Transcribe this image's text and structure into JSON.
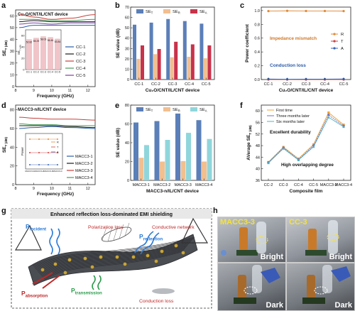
{
  "panels": {
    "a": {
      "letter": "a",
      "title": "Cu₂O/CNT/IL/CNT device",
      "xlabel": "Frequency (GHz)",
      "ylabel": "SE_T (dB)",
      "xticks": [
        "8",
        "9",
        "10",
        "11",
        "12"
      ],
      "yticks": [
        "0",
        "10",
        "20",
        "30",
        "40",
        "50",
        "60"
      ],
      "legend": [
        "CC-1",
        "CC-2",
        "CC-3",
        "CC-4",
        "CC-5"
      ],
      "inset": {
        "ylabel": "SE_T (dB)",
        "categories": [
          "CC-1",
          "CC-2",
          "CC-3",
          "CC-4",
          "CC-5"
        ],
        "values": [
          52.82,
          55.29,
          58.03,
          56.46,
          53.84
        ],
        "value_labels": [
          "52.82",
          "55.29",
          "58.03",
          "56.46",
          "53.84"
        ],
        "yticks": [
          "0",
          "20",
          "40",
          "60"
        ]
      }
    },
    "b": {
      "letter": "b",
      "xlabel": "Cu₂O/CNT/IL/CNT device",
      "ylabel": "SE value (dB)",
      "categories": [
        "CC-1",
        "CC-2",
        "CC-3",
        "CC-4",
        "CC-5"
      ],
      "yticks": [
        "0",
        "10",
        "20",
        "30",
        "40",
        "50",
        "60",
        "70"
      ],
      "legend": [
        "SE_T",
        "SE_R",
        "SE_A"
      ]
    },
    "c": {
      "letter": "c",
      "xlabel": "Cu₂O/CNT/IL/CNT device",
      "ylabel": "Power coefficient",
      "categories": [
        "CC-1",
        "CC-2",
        "CC-3",
        "CC-4",
        "CC-5"
      ],
      "yticks": [
        "0.0",
        "0.2",
        "0.4",
        "0.6",
        "0.8",
        "1.0"
      ],
      "legend": [
        "R",
        "T",
        "A"
      ],
      "annot1": "Impedance mismatch",
      "annot2": "Conduction loss"
    },
    "d": {
      "letter": "d",
      "title": "MACC3-n/IL/CNT device",
      "xlabel": "Frequency (GHz)",
      "ylabel": "SE_T (dB)",
      "xticks": [
        "8",
        "9",
        "10",
        "11",
        "12"
      ],
      "yticks": [
        "0",
        "20",
        "40",
        "60",
        "80"
      ],
      "legend": [
        "MACC3-1",
        "MACC3-2",
        "MACC3-3",
        "MACC3-4"
      ],
      "inset": {
        "ylabel": "Power",
        "legend": [
          "R",
          "T",
          "A"
        ],
        "categories": [
          "MACC3-1",
          "MACC3-2",
          "MACC3-3",
          "MACC3-4"
        ]
      }
    },
    "e": {
      "letter": "e",
      "xlabel": "MACC3-n/IL/CNT device",
      "ylabel": "SE value (dB)",
      "categories": [
        "MACC3-1",
        "MACC3-2",
        "MACC3-3",
        "MACC3-4"
      ],
      "yticks": [
        "0",
        "20",
        "40",
        "60",
        "80"
      ],
      "legend": [
        "SE_T",
        "SE_R",
        "SE_A"
      ]
    },
    "f": {
      "letter": "f",
      "xlabel": "Composite film",
      "ylabel": "AVerage SE_T (dB)",
      "categories": [
        "CC-2",
        "CC-3",
        "CC-4",
        "CC-5",
        "MACC3-2",
        "MACC3-4"
      ],
      "yticks": [
        "36",
        "40",
        "44",
        "48",
        "52",
        "56",
        "60"
      ],
      "legend": [
        "First time",
        "Three months later",
        "Six months later"
      ],
      "annot1": "Excellent durability",
      "annot2": "High overlapping degree"
    },
    "g": {
      "letter": "g",
      "title": "Enhanced reflection loss-dominated EMI shielding",
      "labels": {
        "incident": "P_incident",
        "reflection": "P_reflection",
        "absorption": "P_absorption",
        "transmission": "P_transmission",
        "polarization": "Polarization loss",
        "network": "Conductive network",
        "conduction": "Conduction loss"
      }
    },
    "h": {
      "letter": "h",
      "photos": [
        {
          "label": "MACC3-3",
          "state": "Bright"
        },
        {
          "label": "CC-3",
          "state": "Bright"
        },
        {
          "label": "",
          "state": "Dark"
        },
        {
          "label": "",
          "state": "Dark"
        }
      ]
    }
  },
  "chart_data": [
    {
      "type": "line",
      "panel": "a",
      "xlim": [
        8,
        12.4
      ],
      "ylim": [
        0,
        65
      ],
      "series": [
        {
          "name": "CC-1",
          "x": [
            8.2,
            9,
            10,
            11,
            12.4
          ],
          "y": [
            50,
            52,
            52,
            52,
            52
          ]
        },
        {
          "name": "CC-2",
          "x": [
            8.2,
            9,
            10,
            11,
            12.4
          ],
          "y": [
            55,
            56,
            55,
            55,
            55
          ]
        },
        {
          "name": "CC-3",
          "x": [
            8.2,
            9,
            10,
            11,
            12.4
          ],
          "y": [
            61,
            59,
            57,
            58,
            61
          ]
        },
        {
          "name": "CC-4",
          "x": [
            8.2,
            9,
            10,
            11,
            12.4
          ],
          "y": [
            57,
            57,
            56,
            56,
            57
          ]
        },
        {
          "name": "CC-5",
          "x": [
            8.2,
            9,
            10,
            11,
            12.4
          ],
          "y": [
            53,
            54,
            53,
            54,
            54
          ]
        }
      ]
    },
    {
      "type": "bar",
      "panel": "b",
      "categories": [
        "CC-1",
        "CC-2",
        "CC-3",
        "CC-4",
        "CC-5"
      ],
      "ylim": [
        0,
        70
      ],
      "series": [
        {
          "name": "SE_T",
          "values": [
            53,
            55,
            58.5,
            56.5,
            54
          ]
        },
        {
          "name": "SE_R",
          "values": [
            20,
            24.5,
            21.5,
            22,
            20.5
          ]
        },
        {
          "name": "SE_A",
          "values": [
            33,
            29.5,
            36.5,
            34,
            33
          ]
        }
      ]
    },
    {
      "type": "line",
      "panel": "c",
      "categories": [
        "CC-1",
        "CC-2",
        "CC-3",
        "CC-4",
        "CC-5"
      ],
      "ylim": [
        0,
        1.05
      ],
      "series": [
        {
          "name": "R",
          "values": [
            0.992,
            0.996,
            0.994,
            0.994,
            0.992
          ]
        },
        {
          "name": "T",
          "values": [
            0.0,
            0.0,
            0.0,
            0.0,
            0.0
          ]
        },
        {
          "name": "A",
          "values": [
            0.008,
            0.004,
            0.006,
            0.006,
            0.008
          ]
        }
      ]
    },
    {
      "type": "line",
      "panel": "d",
      "xlim": [
        8,
        12.4
      ],
      "ylim": [
        0,
        85
      ],
      "series": [
        {
          "name": "MACC3-1",
          "x": [
            8.2,
            9,
            10,
            11,
            12.4
          ],
          "y": [
            60,
            61,
            62,
            61,
            60
          ]
        },
        {
          "name": "MACC3-2",
          "x": [
            8.2,
            9,
            10,
            11,
            12.4
          ],
          "y": [
            63,
            63,
            63,
            62,
            61
          ]
        },
        {
          "name": "MACC3-3",
          "x": [
            8.2,
            9,
            10,
            11,
            12.4
          ],
          "y": [
            72,
            71,
            70,
            70,
            69
          ]
        },
        {
          "name": "MACC3-4",
          "x": [
            8.2,
            9,
            10,
            11,
            12.4
          ],
          "y": [
            65,
            64,
            64,
            63,
            63
          ]
        }
      ]
    },
    {
      "type": "bar",
      "panel": "e",
      "categories": [
        "MACC3-1",
        "MACC3-2",
        "MACC3-3",
        "MACC3-4"
      ],
      "ylim": [
        0,
        80
      ],
      "series": [
        {
          "name": "SE_T",
          "values": [
            61.5,
            63,
            71,
            64
          ]
        },
        {
          "name": "SE_R",
          "values": [
            24,
            20,
            20.5,
            20
          ]
        },
        {
          "name": "SE_A",
          "values": [
            37.5,
            43,
            50.5,
            44
          ]
        }
      ]
    },
    {
      "type": "line",
      "panel": "f",
      "categories": [
        "CC-2",
        "CC-3",
        "CC-4",
        "CC-5",
        "MACC3-2",
        "MACC3-4"
      ],
      "ylim": [
        36,
        62
      ],
      "series": [
        {
          "name": "First time",
          "values": [
            42.3,
            47.5,
            43.5,
            48.4,
            59.4,
            55.2
          ]
        },
        {
          "name": "Three months later",
          "values": [
            42.2,
            47.3,
            43.2,
            48.0,
            58.6,
            54.8
          ]
        },
        {
          "name": "Six months later",
          "values": [
            42.0,
            47.0,
            43.0,
            47.6,
            57.8,
            54.5
          ]
        }
      ]
    }
  ],
  "colors": {
    "cc": [
      "#2b5ca8",
      "#1a1a1a",
      "#c8403a",
      "#4a9a5a",
      "#7b3fa0"
    ],
    "macc": [
      "#2b5ca8",
      "#1a1a1a",
      "#c8403a",
      "#4a9a5a"
    ],
    "se_t": "#5b7fb8",
    "se_r": "#f2bf8f",
    "se_a_b": "#c8324a",
    "se_a_e": "#8fd6dc",
    "r": "#e08a3a",
    "t": "#d04040",
    "a": "#3a66b8",
    "f": [
      "#f0a030",
      "#7070c0",
      "#50b0c0"
    ]
  }
}
